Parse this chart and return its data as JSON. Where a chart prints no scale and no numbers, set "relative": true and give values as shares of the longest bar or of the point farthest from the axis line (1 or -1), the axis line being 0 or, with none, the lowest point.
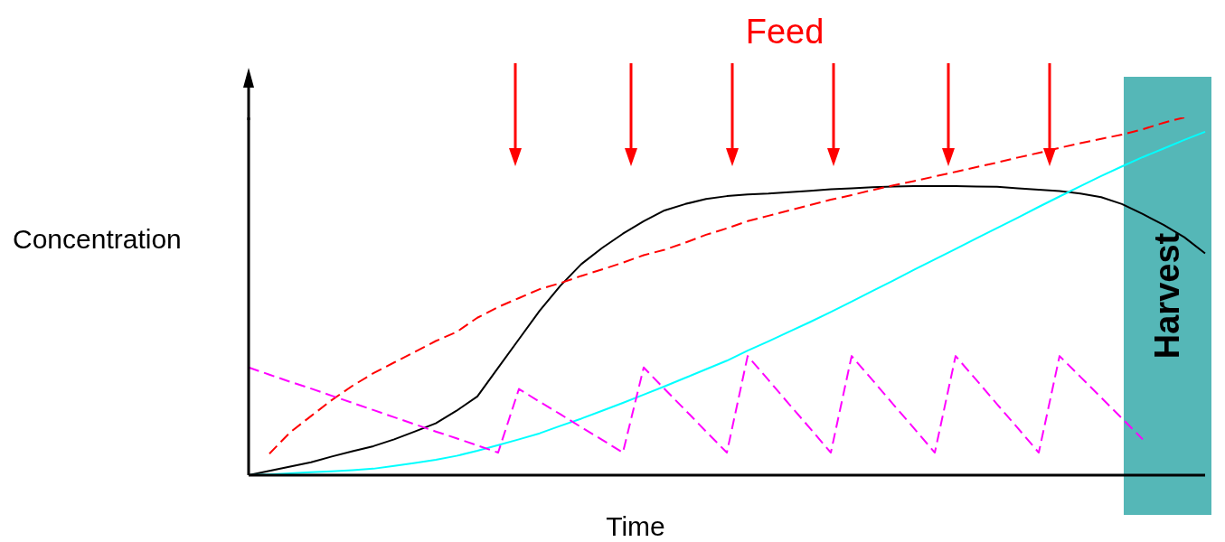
{
  "chart_data": {
    "type": "line",
    "relative": true,
    "xlabel": "Time",
    "ylabel": "Concentration",
    "annotations": [
      "Feed",
      "Harvest"
    ],
    "marker": "none",
    "categories": [
      null,
      null,
      null,
      null,
      null,
      null,
      null,
      null,
      null,
      null,
      null,
      null,
      null,
      null,
      null,
      null,
      null,
      null,
      null,
      null,
      null,
      null,
      null,
      null,
      null,
      null,
      null,
      null,
      null,
      null,
      null,
      null,
      null,
      null,
      null,
      null,
      null,
      null,
      null,
      null,
      null,
      null,
      null,
      null,
      null,
      null,
      null
    ],
    "series": [
      {
        "color": "#000000",
        "line_style": "solid",
        "values": [
          0,
          0.012,
          0.024,
          0.036,
          0.052,
          0.067,
          0.081,
          0.1,
          0.122,
          0.145,
          0.18,
          0.22,
          0.3,
          0.38,
          0.46,
          0.53,
          0.59,
          0.635,
          0.675,
          0.71,
          0.74,
          0.758,
          0.772,
          0.78,
          0.785,
          0.787,
          0.791,
          0.795,
          0.799,
          0.802,
          0.805,
          0.807,
          0.808,
          0.808,
          0.808,
          0.807,
          0.806,
          0.802,
          0.798,
          0.794,
          0.787,
          0.777,
          0.758,
          0.73,
          0.7,
          0.665,
          0.62
        ]
      },
      {
        "color": "#ff0000",
        "line_style": "dashed",
        "values": [
          null,
          0.06,
          0.12,
          0.165,
          0.21,
          0.25,
          0.285,
          0.315,
          0.345,
          0.375,
          0.4,
          0.44,
          0.47,
          0.495,
          0.52,
          0.537,
          0.557,
          0.575,
          0.594,
          0.615,
          0.63,
          0.65,
          0.672,
          0.69,
          0.71,
          0.725,
          0.74,
          0.755,
          0.77,
          0.783,
          0.797,
          0.81,
          0.822,
          0.835,
          0.848,
          0.861,
          0.874,
          0.888,
          0.901,
          0.915,
          0.928,
          0.94,
          0.952,
          0.967,
          0.985,
          1,
          null
        ]
      },
      {
        "color": "#00ffff",
        "line_style": "solid",
        "values": [
          0,
          0.002,
          0.005,
          0.008,
          0.011,
          0.014,
          0.018,
          0.026,
          0.034,
          0.043,
          0.054,
          0.068,
          0.084,
          0.1,
          0.117,
          0.138,
          0.158,
          0.18,
          0.202,
          0.225,
          0.248,
          0.272,
          0.296,
          0.32,
          0.348,
          0.374,
          0.401,
          0.428,
          0.456,
          0.485,
          0.515,
          0.544,
          0.574,
          0.603,
          0.632,
          0.662,
          0.691,
          0.72,
          0.75,
          0.779,
          0.808,
          0.836,
          0.863,
          0.889,
          0.913,
          0.937,
          0.96
        ]
      },
      {
        "color": "#ff00ff",
        "line_style": "dashed",
        "values": [
          0.301,
          0.281,
          0.261,
          0.242,
          0.222,
          0.202,
          0.182,
          0.162,
          0.142,
          0.122,
          0.103,
          0.083,
          0.063,
          0.241,
          0.205,
          0.17,
          0.134,
          0.099,
          0.063,
          0.301,
          0.241,
          0.182,
          0.122,
          0.063,
          0.333,
          0.266,
          0.198,
          0.131,
          0.063,
          0.333,
          0.266,
          0.198,
          0.131,
          0.063,
          0.333,
          0.266,
          0.198,
          0.131,
          0.063,
          0.333,
          0.275,
          0.217,
          0.159,
          0.1,
          null,
          null,
          null
        ]
      }
    ]
  }
}
